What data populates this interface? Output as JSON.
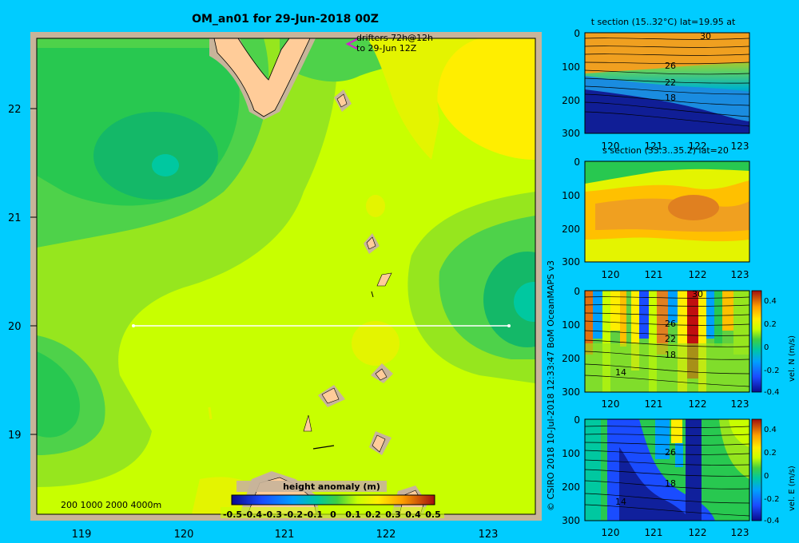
{
  "main_map": {
    "title": "OM_an01 for 29-Jun-2018 00Z",
    "drifter_note_line1": "drifters 72h@12h",
    "drifter_note_line2": "to 29-Jun 12Z",
    "lat_labels": [
      "22",
      "21",
      "20",
      "19"
    ],
    "lon_labels": [
      "119",
      "120",
      "121",
      "122",
      "123"
    ],
    "depth_legend": "200  1000  2000  4000m",
    "colorbar_title": "height anomaly (m)",
    "colorbar_ticks": [
      "-0.5",
      "-0.4",
      "-0.3",
      "-0.2",
      "-0.1",
      "0",
      "0.1",
      "0.2",
      "0.3",
      "0.4",
      "0.5"
    ]
  },
  "credit": {
    "text": "© CSIRO 2018   10-Jul-2018 12:33:47 BoM OceanMAPS v3"
  },
  "panels": {
    "t_section": {
      "title": "t section (15..32°C) lat=19.95 at",
      "depth_ticks": [
        "0",
        "100",
        "200",
        "300"
      ],
      "lon_ticks": [
        "120",
        "121",
        "122",
        "123"
      ],
      "contour_labels": [
        "30",
        "26",
        "22",
        "18"
      ]
    },
    "s_section": {
      "title": "s section (33.3..35.2) lat=20",
      "depth_ticks": [
        "0",
        "100",
        "200",
        "300"
      ],
      "lon_ticks": [
        "120",
        "121",
        "122",
        "123"
      ]
    },
    "vn_section": {
      "depth_ticks": [
        "0",
        "100",
        "200",
        "300"
      ],
      "lon_ticks": [
        "120",
        "121",
        "122",
        "123"
      ],
      "contour_labels": [
        "30",
        "26",
        "22",
        "18",
        "14"
      ],
      "colorbar_ticks": [
        "0.4",
        "0.2",
        "0",
        "-0.2",
        "-0.4"
      ],
      "colorbar_label": "vel. N (m/s)"
    },
    "ve_section": {
      "depth_ticks": [
        "0",
        "100",
        "200",
        "300"
      ],
      "lon_ticks": [
        "120",
        "121",
        "122",
        "123"
      ],
      "contour_labels": [
        "26",
        "18",
        "14"
      ],
      "colorbar_ticks": [
        "0.4",
        "0.2",
        "0",
        "-0.2",
        "-0.4"
      ],
      "colorbar_label": "vel. E (m/s)"
    }
  },
  "colors": {
    "background": "#00ccff",
    "land": "#ffcc99",
    "shelf": "#c8b49a"
  }
}
